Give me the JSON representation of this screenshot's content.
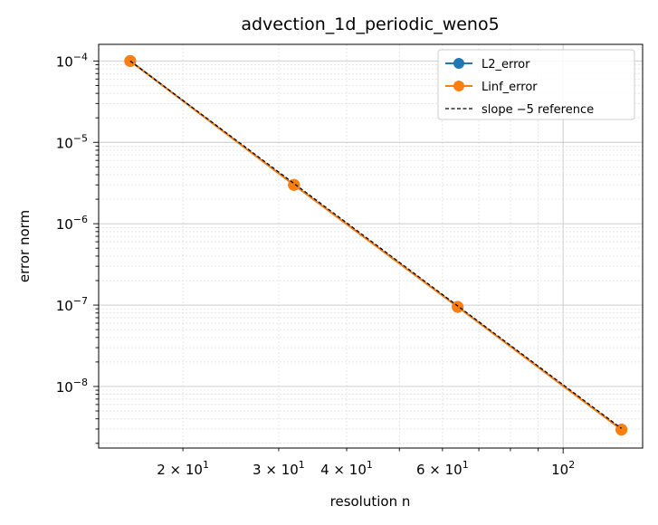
{
  "chart_data": {
    "type": "line",
    "title": "advection_1d_periodic_weno5",
    "xlabel": "resolution n",
    "ylabel": "error norm",
    "xscale": "log",
    "yscale": "log",
    "xlim": [
      14.0,
      140.0
    ],
    "ylim": [
      1.75e-09,
      0.00016
    ],
    "grid": true,
    "legend_position": "top-right",
    "x": [
      16,
      32,
      64,
      128
    ],
    "series": [
      {
        "name": "L2_error",
        "color": "#1f77b4",
        "style": "solid-marker",
        "values": [
          0.0001,
          3e-06,
          9.5e-08,
          2.95e-09
        ]
      },
      {
        "name": "Linf_error",
        "color": "#ff7f0e",
        "style": "solid-marker",
        "values": [
          0.0001,
          3e-06,
          9.5e-08,
          2.95e-09
        ]
      },
      {
        "name": "slope −5 reference",
        "color": "#000000",
        "style": "dashed",
        "values": [
          0.0001,
          3.125e-06,
          9.77e-08,
          3.05e-09
        ]
      }
    ],
    "x_ticks": [
      {
        "value": 20,
        "base": "2 × 10",
        "exp": "1"
      },
      {
        "value": 30,
        "base": "3 × 10",
        "exp": "1"
      },
      {
        "value": 40,
        "base": "4 × 10",
        "exp": "1"
      },
      {
        "value": 60,
        "base": "6 × 10",
        "exp": "1"
      },
      {
        "value": 100,
        "base": "10",
        "exp": "2"
      }
    ],
    "y_ticks": [
      {
        "value": 1e-08,
        "base": "10",
        "exp": "−8"
      },
      {
        "value": 1e-07,
        "base": "10",
        "exp": "−7"
      },
      {
        "value": 1e-06,
        "base": "10",
        "exp": "−6"
      },
      {
        "value": 1e-05,
        "base": "10",
        "exp": "−5"
      },
      {
        "value": 0.0001,
        "base": "10",
        "exp": "−4"
      }
    ]
  }
}
